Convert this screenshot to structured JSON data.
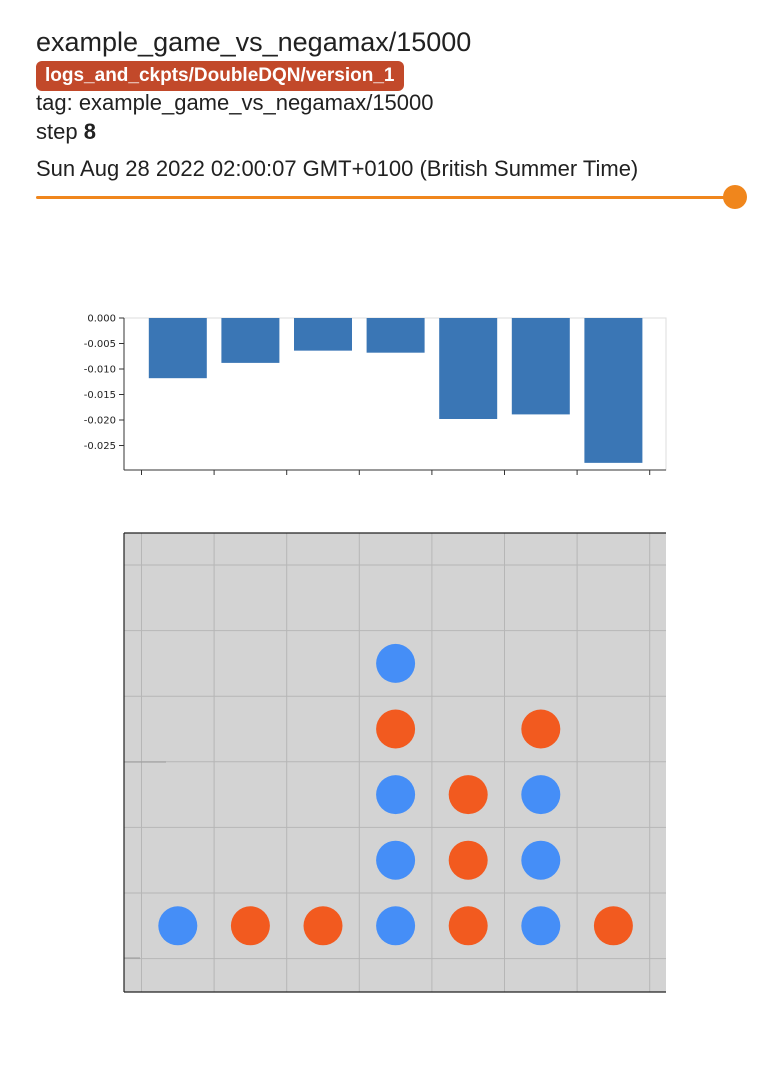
{
  "header": {
    "title": "example_game_vs_negamax/15000",
    "run_label": "logs_and_ckpts/DoubleDQN/version_1",
    "tag_prefix": "tag: ",
    "tag_value": "example_game_vs_negamax/15000",
    "step_prefix": "step ",
    "step_value": "8",
    "timestamp": "Sun Aug 28 2022 02:00:07 GMT+0100 (British Summer Time)"
  },
  "colors": {
    "run_badge": "#c2492a",
    "slider": "#f0861c",
    "bar": "#3a76b5",
    "board_bg": "#d3d3d3",
    "piece_blue": "#458ef7",
    "piece_orange": "#f25a1f"
  },
  "slider": {
    "value_fraction": 1.0
  },
  "chart_data": {
    "type": "bar",
    "categories": [
      "",
      "",
      "",
      "",
      "",
      "",
      ""
    ],
    "values": [
      -0.0118,
      -0.0088,
      -0.0064,
      -0.0068,
      -0.0198,
      -0.0189,
      -0.0284
    ],
    "yticks": [
      "0.000",
      "-0.005",
      "-0.010",
      "-0.015",
      "-0.020",
      "-0.025"
    ],
    "ytick_values": [
      0,
      -0.005,
      -0.01,
      -0.015,
      -0.02,
      -0.025
    ],
    "ylim": [
      -0.0298,
      0.0
    ],
    "grid": false,
    "legend": "none"
  },
  "board": {
    "columns": 7,
    "rows": 6,
    "grid": [
      [
        "",
        "",
        "",
        "",
        "",
        "",
        ""
      ],
      [
        "",
        "",
        "",
        "blue",
        "",
        "",
        ""
      ],
      [
        "",
        "",
        "",
        "orange",
        "",
        "orange",
        ""
      ],
      [
        "",
        "",
        "",
        "blue",
        "orange",
        "blue",
        ""
      ],
      [
        "",
        "",
        "",
        "blue",
        "orange",
        "blue",
        ""
      ],
      [
        "blue",
        "orange",
        "orange",
        "blue",
        "orange",
        "blue",
        "orange"
      ]
    ]
  }
}
